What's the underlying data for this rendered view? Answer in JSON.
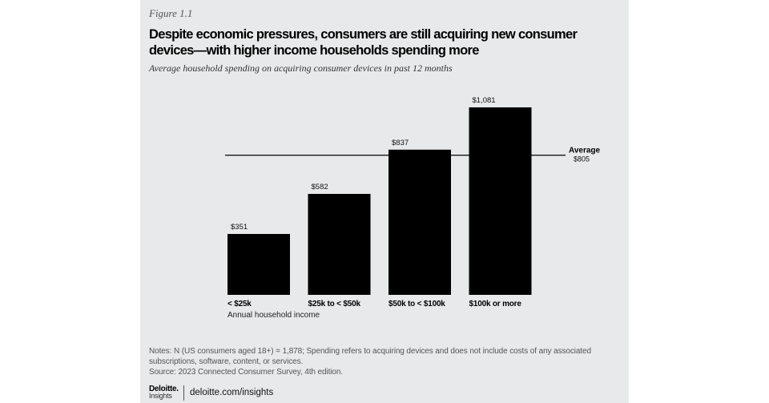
{
  "figure_label": "Figure 1.1",
  "chart_data": {
    "type": "bar",
    "title": "Despite economic pressures, consumers are still acquiring new consumer devices—with higher  income households spending more",
    "subtitle": "Average household spending on acquiring consumer devices in past 12 months",
    "categories": [
      "< $25k",
      "$25k to < $50k",
      "$50k to < $100k",
      "$100k or more"
    ],
    "values": [
      351,
      582,
      837,
      1081
    ],
    "data_labels": [
      "$351",
      "$582",
      "$837",
      "$1,081"
    ],
    "xlabel": "Annual household income",
    "ylabel": "",
    "ylim": [
      0,
      1081
    ],
    "grid": false,
    "bar_color": "#000000",
    "reference_line": {
      "label": "Average",
      "value": 805,
      "value_label": "$805"
    }
  },
  "notes": "Notes: N (US consumers aged 18+) = 1,878; Spending refers to acquiring devices and does not include costs of any associated subscriptions, software, content, or services.",
  "source": "Source: 2023 Connected Consumer Survey, 4th edition.",
  "footer": {
    "brand": "Deloitte.",
    "brand_sub": "Insights",
    "url": "deloitte.com/insights"
  },
  "colors": {
    "background": "#e8e9ea",
    "text": "#000000"
  }
}
